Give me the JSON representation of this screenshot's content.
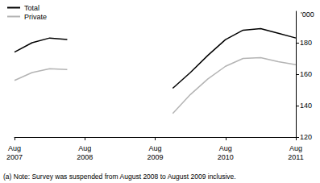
{
  "chart_data": {
    "type": "line",
    "y_label": "'000",
    "annotations": [
      "(a) Note: Survey was suspended from August 2008 to August 2009 inclusive."
    ],
    "categories": [
      "Aug 2007",
      null,
      null,
      null,
      "Aug 2008",
      null,
      null,
      null,
      "Aug 2009",
      null,
      null,
      null,
      "Aug 2010",
      null,
      null,
      null,
      "Aug 2011"
    ],
    "series": [
      {
        "name": "Total",
        "color": "#000000",
        "values": [
          174,
          180,
          183,
          182,
          null,
          null,
          null,
          null,
          null,
          151,
          161,
          172,
          182,
          188,
          189,
          186,
          183
        ]
      },
      {
        "name": "Private",
        "color": "#b4b4b4",
        "values": [
          156,
          161,
          163.5,
          163,
          null,
          null,
          null,
          null,
          null,
          135,
          147,
          157,
          165,
          170,
          170.5,
          168,
          166
        ]
      }
    ],
    "ylim": [
      120,
      200
    ],
    "yticks": [
      120,
      140,
      160,
      180
    ],
    "grid": false,
    "legend": "top-left"
  }
}
